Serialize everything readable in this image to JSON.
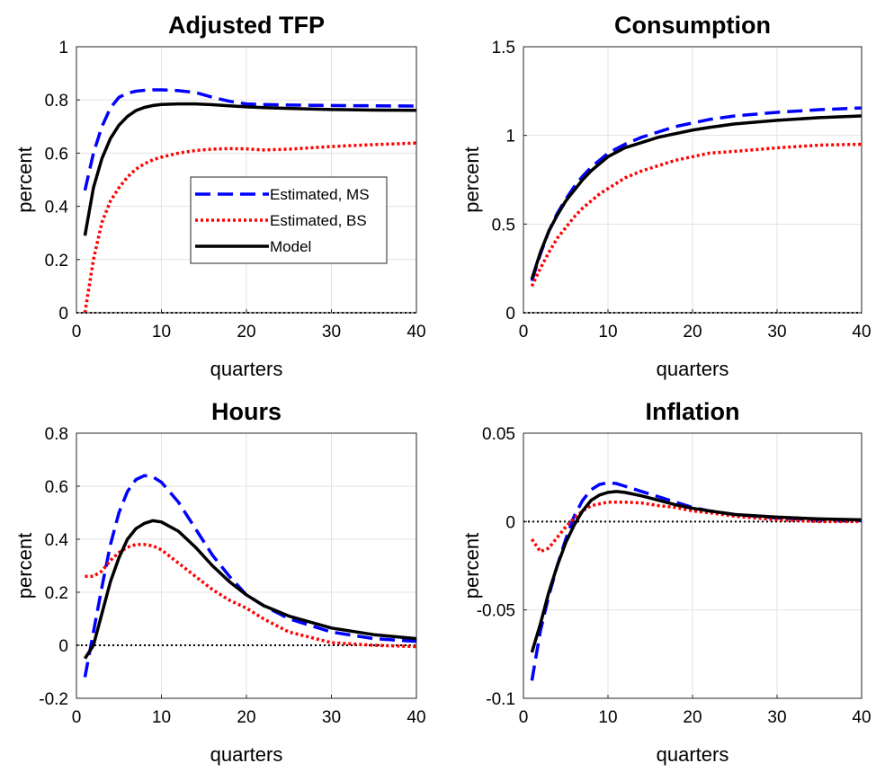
{
  "chart_data": [
    {
      "type": "line",
      "title": "Adjusted TFP",
      "xlabel": "quarters",
      "ylabel": "percent",
      "xlim": [
        0,
        40
      ],
      "ylim": [
        0,
        1
      ],
      "xticks": [
        "0",
        "10",
        "20",
        "30",
        "40"
      ],
      "yticks": [
        "0",
        "0.2",
        "0.4",
        "0.6",
        "0.8",
        "1"
      ],
      "grid": true,
      "zero_line": true,
      "legend": {
        "placement": "center",
        "entries": [
          "Estimated, MS",
          "Estimated, BS",
          "Model"
        ]
      },
      "series": [
        {
          "name": "Estimated, MS",
          "color": "#0000ff",
          "style": "dashed",
          "x": [
            1,
            2,
            3,
            4,
            5,
            6,
            7,
            8,
            9,
            10,
            12,
            14,
            16,
            18,
            20,
            22,
            25,
            30,
            35,
            40
          ],
          "y": [
            0.46,
            0.6,
            0.7,
            0.77,
            0.81,
            0.825,
            0.833,
            0.836,
            0.838,
            0.838,
            0.835,
            0.828,
            0.81,
            0.795,
            0.785,
            0.783,
            0.781,
            0.779,
            0.778,
            0.777
          ]
        },
        {
          "name": "Estimated, BS",
          "color": "#ff0000",
          "style": "dotted",
          "x": [
            1,
            2,
            3,
            4,
            5,
            6,
            7,
            8,
            9,
            10,
            12,
            14,
            16,
            18,
            20,
            22,
            25,
            30,
            35,
            40
          ],
          "y": [
            0.0,
            0.2,
            0.34,
            0.42,
            0.47,
            0.51,
            0.54,
            0.56,
            0.575,
            0.585,
            0.6,
            0.61,
            0.615,
            0.617,
            0.616,
            0.612,
            0.615,
            0.625,
            0.632,
            0.638
          ]
        },
        {
          "name": "Model",
          "color": "#000000",
          "style": "solid",
          "x": [
            1,
            2,
            3,
            4,
            5,
            6,
            7,
            8,
            9,
            10,
            12,
            14,
            16,
            18,
            20,
            22,
            25,
            30,
            35,
            40
          ],
          "y": [
            0.29,
            0.47,
            0.58,
            0.655,
            0.705,
            0.738,
            0.76,
            0.772,
            0.779,
            0.783,
            0.785,
            0.785,
            0.782,
            0.778,
            0.774,
            0.771,
            0.768,
            0.764,
            0.762,
            0.761
          ]
        }
      ]
    },
    {
      "type": "line",
      "title": "Consumption",
      "xlabel": "quarters",
      "ylabel": "percent",
      "xlim": [
        0,
        40
      ],
      "ylim": [
        0,
        1.5
      ],
      "xticks": [
        "0",
        "10",
        "20",
        "30",
        "40"
      ],
      "yticks": [
        "0",
        "0.5",
        "1",
        "1.5"
      ],
      "grid": true,
      "zero_line": true,
      "series": [
        {
          "name": "Estimated, MS",
          "color": "#0000ff",
          "style": "dashed",
          "x": [
            1,
            2,
            3,
            4,
            5,
            6,
            7,
            8,
            9,
            10,
            12,
            14,
            16,
            18,
            20,
            22,
            25,
            30,
            35,
            40
          ],
          "y": [
            0.18,
            0.33,
            0.46,
            0.56,
            0.64,
            0.71,
            0.77,
            0.82,
            0.86,
            0.9,
            0.95,
            0.99,
            1.02,
            1.05,
            1.07,
            1.09,
            1.11,
            1.13,
            1.145,
            1.155
          ]
        },
        {
          "name": "Estimated, BS",
          "color": "#ff0000",
          "style": "dotted",
          "x": [
            1,
            2,
            3,
            4,
            5,
            6,
            7,
            8,
            9,
            10,
            12,
            14,
            16,
            18,
            20,
            22,
            25,
            30,
            35,
            40
          ],
          "y": [
            0.15,
            0.25,
            0.34,
            0.42,
            0.48,
            0.54,
            0.59,
            0.63,
            0.67,
            0.7,
            0.76,
            0.8,
            0.83,
            0.86,
            0.88,
            0.9,
            0.91,
            0.93,
            0.945,
            0.95
          ]
        },
        {
          "name": "Model",
          "color": "#000000",
          "style": "solid",
          "x": [
            1,
            2,
            3,
            4,
            5,
            6,
            7,
            8,
            9,
            10,
            12,
            14,
            16,
            18,
            20,
            22,
            25,
            30,
            35,
            40
          ],
          "y": [
            0.19,
            0.34,
            0.46,
            0.55,
            0.63,
            0.69,
            0.75,
            0.8,
            0.84,
            0.88,
            0.93,
            0.96,
            0.99,
            1.01,
            1.03,
            1.045,
            1.065,
            1.085,
            1.1,
            1.11
          ]
        }
      ]
    },
    {
      "type": "line",
      "title": "Hours",
      "xlabel": "quarters",
      "ylabel": "percent",
      "xlim": [
        0,
        40
      ],
      "ylim": [
        -0.2,
        0.8
      ],
      "xticks": [
        "0",
        "10",
        "20",
        "30",
        "40"
      ],
      "yticks": [
        "-0.2",
        "0",
        "0.2",
        "0.4",
        "0.6",
        "0.8"
      ],
      "grid": true,
      "zero_line": true,
      "series": [
        {
          "name": "Estimated, MS",
          "color": "#0000ff",
          "style": "dashed",
          "x": [
            1,
            2,
            3,
            4,
            5,
            6,
            7,
            8,
            9,
            10,
            12,
            14,
            16,
            18,
            20,
            22,
            25,
            30,
            35,
            40
          ],
          "y": [
            -0.12,
            0.05,
            0.22,
            0.38,
            0.5,
            0.58,
            0.625,
            0.64,
            0.635,
            0.615,
            0.54,
            0.44,
            0.34,
            0.26,
            0.19,
            0.15,
            0.1,
            0.05,
            0.025,
            0.015
          ]
        },
        {
          "name": "Estimated, BS",
          "color": "#ff0000",
          "style": "dotted",
          "x": [
            1,
            2,
            3,
            4,
            5,
            6,
            7,
            8,
            9,
            10,
            12,
            14,
            16,
            18,
            20,
            22,
            25,
            30,
            35,
            40
          ],
          "y": [
            0.26,
            0.26,
            0.28,
            0.32,
            0.35,
            0.37,
            0.38,
            0.38,
            0.375,
            0.36,
            0.31,
            0.26,
            0.21,
            0.17,
            0.14,
            0.1,
            0.05,
            0.01,
            0.0,
            -0.005
          ]
        },
        {
          "name": "Model",
          "color": "#000000",
          "style": "solid",
          "x": [
            1,
            2,
            3,
            4,
            5,
            6,
            7,
            8,
            9,
            10,
            12,
            14,
            16,
            18,
            20,
            22,
            25,
            30,
            35,
            40
          ],
          "y": [
            -0.05,
            0.0,
            0.12,
            0.24,
            0.33,
            0.4,
            0.44,
            0.46,
            0.47,
            0.465,
            0.43,
            0.37,
            0.3,
            0.24,
            0.19,
            0.15,
            0.11,
            0.065,
            0.04,
            0.025
          ]
        }
      ]
    },
    {
      "type": "line",
      "title": "Inflation",
      "xlabel": "quarters",
      "ylabel": "percent",
      "xlim": [
        0,
        40
      ],
      "ylim": [
        -0.1,
        0.05
      ],
      "xticks": [
        "0",
        "10",
        "20",
        "30",
        "40"
      ],
      "yticks": [
        "-0.1",
        "-0.05",
        "0",
        "0.05"
      ],
      "grid": true,
      "zero_line": true,
      "series": [
        {
          "name": "Estimated, MS",
          "color": "#0000ff",
          "style": "dashed",
          "x": [
            1,
            2,
            3,
            4,
            5,
            6,
            7,
            8,
            9,
            10,
            11,
            12,
            14,
            16,
            18,
            20,
            22,
            25,
            30,
            35,
            40
          ],
          "y": [
            -0.09,
            -0.062,
            -0.042,
            -0.025,
            -0.01,
            0.003,
            0.012,
            0.018,
            0.021,
            0.022,
            0.0215,
            0.02,
            0.017,
            0.014,
            0.011,
            0.008,
            0.006,
            0.004,
            0.002,
            0.001,
            0.0005
          ]
        },
        {
          "name": "Estimated, BS",
          "color": "#ff0000",
          "style": "dotted",
          "x": [
            1,
            2,
            3,
            4,
            5,
            6,
            7,
            8,
            9,
            10,
            11,
            12,
            14,
            16,
            18,
            20,
            22,
            25,
            30,
            35,
            40
          ],
          "y": [
            -0.01,
            -0.017,
            -0.015,
            -0.009,
            -0.003,
            0.002,
            0.006,
            0.009,
            0.01,
            0.011,
            0.011,
            0.011,
            0.0105,
            0.009,
            0.008,
            0.006,
            0.005,
            0.003,
            0.001,
            0.0,
            0.0
          ]
        },
        {
          "name": "Model",
          "color": "#000000",
          "style": "solid",
          "x": [
            1,
            2,
            3,
            4,
            5,
            6,
            7,
            8,
            9,
            10,
            11,
            12,
            14,
            16,
            18,
            20,
            22,
            25,
            30,
            35,
            40
          ],
          "y": [
            -0.074,
            -0.058,
            -0.04,
            -0.025,
            -0.012,
            -0.002,
            0.006,
            0.012,
            0.015,
            0.0165,
            0.017,
            0.0165,
            0.0145,
            0.012,
            0.0095,
            0.0075,
            0.006,
            0.004,
            0.0025,
            0.0015,
            0.001
          ]
        }
      ]
    }
  ]
}
